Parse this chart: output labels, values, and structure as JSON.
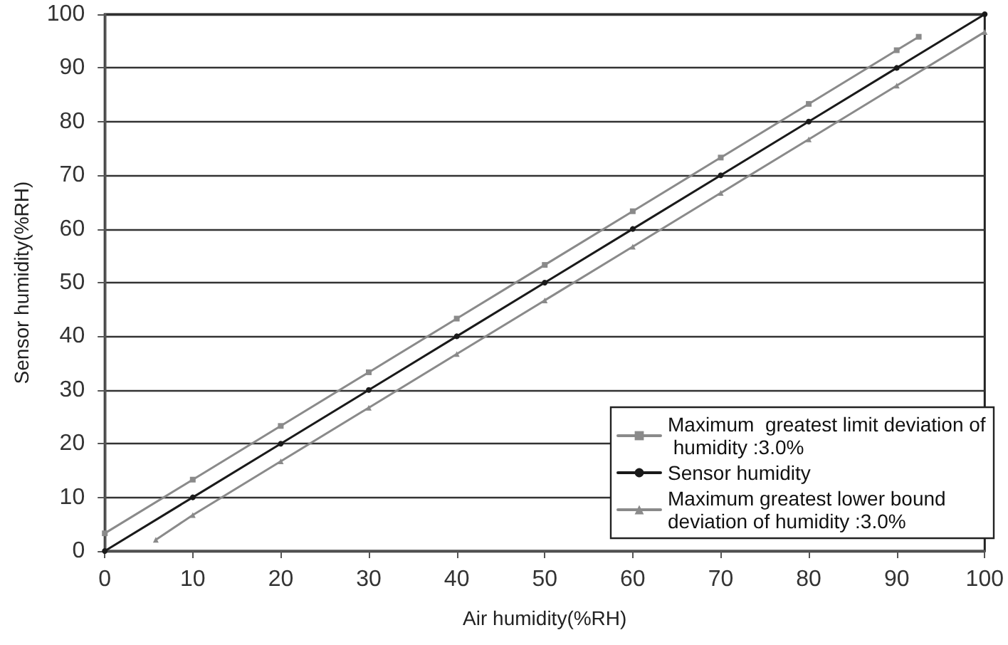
{
  "chart_data": {
    "type": "line",
    "xlabel": "Air humidity(%RH)",
    "ylabel": "Sensor humidity(%RH)",
    "xlim": [
      0,
      100
    ],
    "ylim": [
      0,
      100
    ],
    "xticks": [
      0,
      10,
      20,
      30,
      40,
      50,
      60,
      70,
      80,
      90,
      100
    ],
    "yticks": [
      0,
      10,
      20,
      30,
      40,
      50,
      60,
      70,
      80,
      90,
      100
    ],
    "grid": "y",
    "legend": "bottom right",
    "series": [
      {
        "name": "Maximum  greatest limit deviation of humidity :3.0%",
        "color": "#8a8a8a",
        "marker": "square",
        "x": [
          0,
          10,
          20,
          30,
          40,
          50,
          60,
          70,
          80,
          90,
          92.5
        ],
        "values": [
          3.3,
          13.3,
          23.3,
          33.3,
          43.3,
          53.3,
          63.3,
          73.3,
          83.3,
          93.3,
          95.8
        ]
      },
      {
        "name": "Sensor humidity",
        "color": "#1a1a1a",
        "marker": "circle",
        "x": [
          0,
          10,
          20,
          30,
          40,
          50,
          60,
          70,
          80,
          90,
          100
        ],
        "values": [
          0,
          10,
          20,
          30,
          40,
          50,
          60,
          70,
          80,
          90,
          100
        ]
      },
      {
        "name": "Maximum greatest lower bound deviation of humidity :3.0%",
        "color": "#8a8a8a",
        "marker": "triangle",
        "x": [
          5.8,
          10,
          20,
          30,
          40,
          50,
          60,
          70,
          80,
          90,
          100
        ],
        "values": [
          2.1,
          6.7,
          16.7,
          26.7,
          36.7,
          46.7,
          56.7,
          66.7,
          76.7,
          86.7,
          96.7
        ]
      }
    ]
  }
}
